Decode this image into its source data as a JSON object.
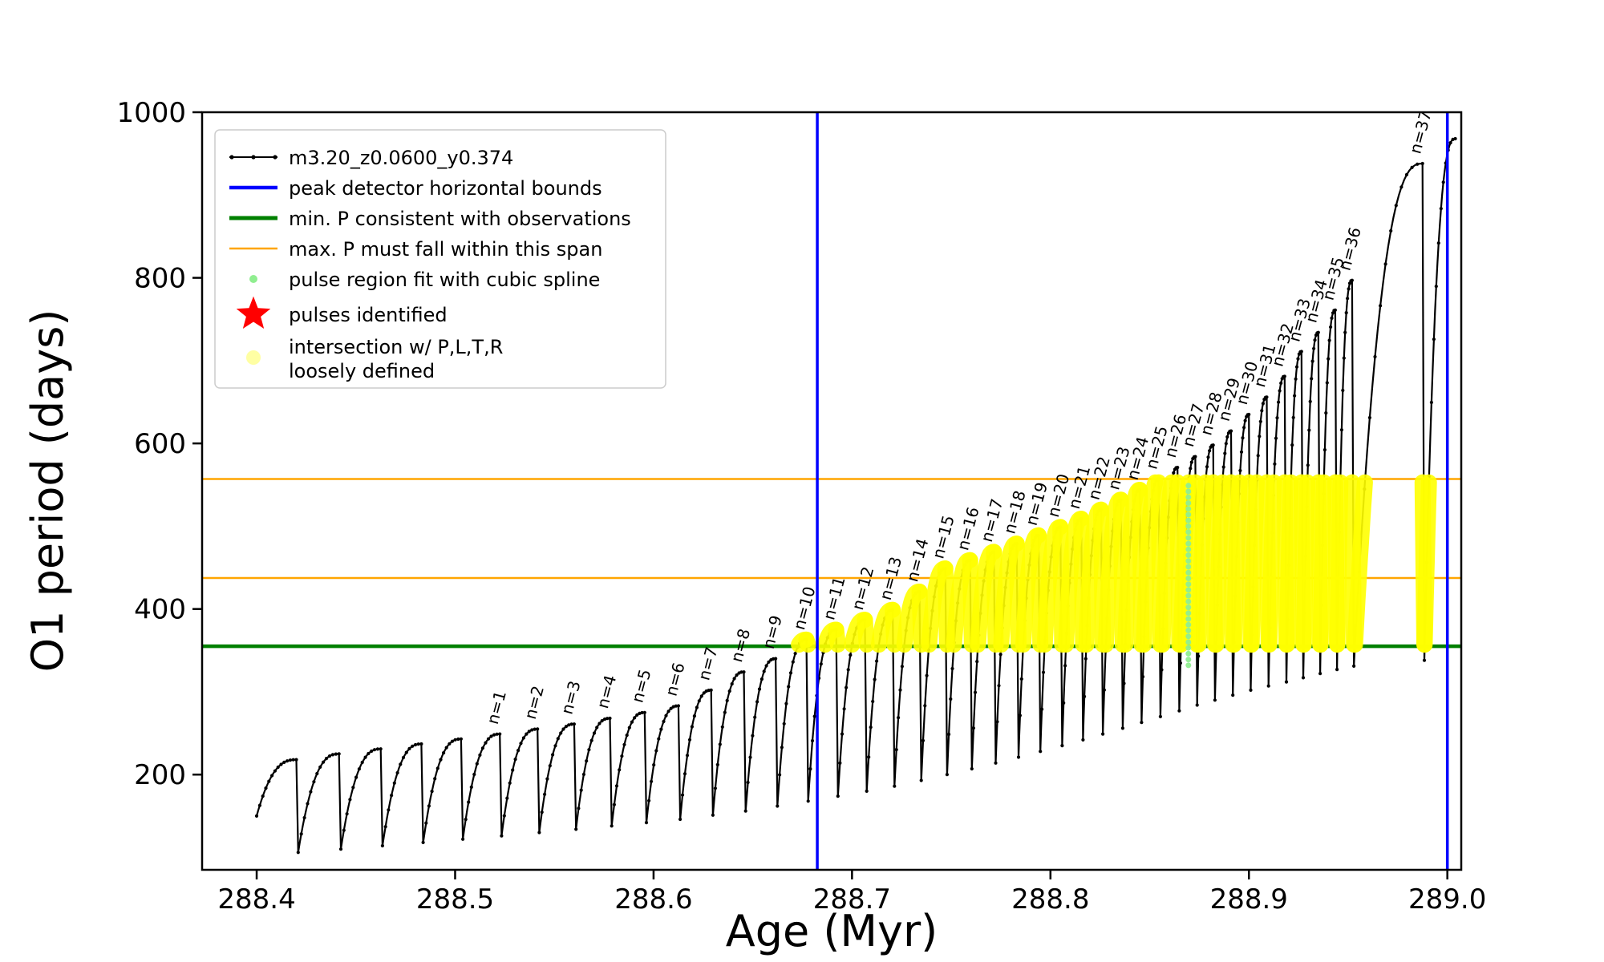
{
  "chart_data": {
    "type": "line",
    "xlabel": "Age (Myr)",
    "ylabel": "O1 period (days)",
    "xlim": [
      288.3725,
      289.007
    ],
    "ylim": [
      85,
      1000
    ],
    "x_start": 288.4,
    "xticks": {
      "values": [
        288.4,
        288.5,
        288.6,
        288.7,
        288.8,
        288.9,
        289.0
      ],
      "labels": [
        "288.4",
        "288.5",
        "288.6",
        "288.7",
        "288.8",
        "288.9",
        "289.0"
      ]
    },
    "yticks": {
      "values": [
        200,
        400,
        600,
        800,
        1000
      ],
      "labels": [
        "200",
        "400",
        "600",
        "800",
        "1000"
      ]
    },
    "series_name": "m3.20_z0.0600_y0.374",
    "colors": {
      "curve": "#000000",
      "peak_bounds": "#0000ff",
      "min_p": "#008000",
      "max_p": "#ffa500",
      "spline": "#90ee90",
      "pulses_identified": "#ff0000",
      "intersection": "#ffff00"
    },
    "vlines": {
      "x": [
        288.6825,
        289.0
      ]
    },
    "hlines": {
      "min_p_y": 355,
      "max_p_y": [
        437.5,
        557
      ]
    },
    "intersection_band": {
      "ymin": 357,
      "ymax": 553
    },
    "spline_strip": {
      "x": 288.8695,
      "ymin": 332,
      "ymax": 553
    },
    "pulses": [
      {
        "label": "",
        "x": 288.42,
        "peak": 218,
        "trough": 150
      },
      {
        "label": "",
        "x": 288.4415,
        "peak": 225,
        "trough": 106
      },
      {
        "label": "",
        "x": 288.4625,
        "peak": 231,
        "trough": 110
      },
      {
        "label": "",
        "x": 288.483,
        "peak": 237,
        "trough": 114
      },
      {
        "label": "",
        "x": 288.503,
        "peak": 243,
        "trough": 118
      },
      {
        "label": "n=1",
        "x": 288.5225,
        "peak": 249,
        "trough": 122
      },
      {
        "label": "n=2",
        "x": 288.5415,
        "peak": 255,
        "trough": 126
      },
      {
        "label": "n=3",
        "x": 288.56,
        "peak": 261,
        "trough": 130
      },
      {
        "label": "n=4",
        "x": 288.578,
        "peak": 268,
        "trough": 134
      },
      {
        "label": "n=5",
        "x": 288.5955,
        "peak": 275,
        "trough": 138
      },
      {
        "label": "n=6",
        "x": 288.6125,
        "peak": 283,
        "trough": 142
      },
      {
        "label": "n=7",
        "x": 288.629,
        "peak": 302,
        "trough": 146
      },
      {
        "label": "n=8",
        "x": 288.6455,
        "peak": 324,
        "trough": 151
      },
      {
        "label": "n=9",
        "x": 288.6615,
        "peak": 340,
        "trough": 156
      },
      {
        "label": "n=10",
        "x": 288.677,
        "peak": 363,
        "trough": 162
      },
      {
        "label": "n=11",
        "x": 288.692,
        "peak": 375,
        "trough": 168
      },
      {
        "label": "n=12",
        "x": 288.7065,
        "peak": 387,
        "trough": 174
      },
      {
        "label": "n=13",
        "x": 288.7205,
        "peak": 399,
        "trough": 180
      },
      {
        "label": "n=14",
        "x": 288.734,
        "peak": 421,
        "trough": 186
      },
      {
        "label": "n=15",
        "x": 288.747,
        "peak": 449,
        "trough": 193
      },
      {
        "label": "n=16",
        "x": 288.7595,
        "peak": 459,
        "trough": 200
      },
      {
        "label": "n=17",
        "x": 288.7715,
        "peak": 469,
        "trough": 207
      },
      {
        "label": "n=18",
        "x": 288.783,
        "peak": 479,
        "trough": 214
      },
      {
        "label": "n=19",
        "x": 288.794,
        "peak": 489,
        "trough": 221
      },
      {
        "label": "n=20",
        "x": 288.805,
        "peak": 499,
        "trough": 228
      },
      {
        "label": "n=21",
        "x": 288.8155,
        "peak": 509,
        "trough": 235
      },
      {
        "label": "n=22",
        "x": 288.8255,
        "peak": 520,
        "trough": 242
      },
      {
        "label": "n=23",
        "x": 288.8355,
        "peak": 532,
        "trough": 249
      },
      {
        "label": "n=24",
        "x": 288.845,
        "peak": 544,
        "trough": 256
      },
      {
        "label": "n=25",
        "x": 288.8545,
        "peak": 557,
        "trough": 263
      },
      {
        "label": "n=26",
        "x": 288.864,
        "peak": 571,
        "trough": 270
      },
      {
        "label": "n=27",
        "x": 288.873,
        "peak": 584,
        "trough": 277
      },
      {
        "label": "n=28",
        "x": 288.882,
        "peak": 598,
        "trough": 284
      },
      {
        "label": "n=29",
        "x": 288.891,
        "peak": 615,
        "trough": 290
      },
      {
        "label": "n=30",
        "x": 288.9,
        "peak": 635,
        "trough": 296
      },
      {
        "label": "n=31",
        "x": 288.909,
        "peak": 656,
        "trough": 302
      },
      {
        "label": "n=32",
        "x": 288.918,
        "peak": 681,
        "trough": 307
      },
      {
        "label": "n=33",
        "x": 288.9265,
        "peak": 711,
        "trough": 312
      },
      {
        "label": "n=34",
        "x": 288.935,
        "peak": 734,
        "trough": 317
      },
      {
        "label": "n=35",
        "x": 288.9435,
        "peak": 761,
        "trough": 322
      },
      {
        "label": "n=36",
        "x": 288.952,
        "peak": 797,
        "trough": 327
      },
      {
        "label": "n=37",
        "x": 288.9875,
        "peak": 938,
        "trough": 331
      },
      {
        "label": "",
        "x": 289.004,
        "peak": 968,
        "trough": 338
      }
    ],
    "legend": [
      {
        "label": "m3.20_z0.0600_y0.374",
        "color": "#000000",
        "type": "line-dot"
      },
      {
        "label": "peak detector horizontal bounds",
        "color": "#0000ff",
        "type": "line"
      },
      {
        "label": "min. P consistent with observations",
        "color": "#008000",
        "type": "line"
      },
      {
        "label": "max. P must fall within this span",
        "color": "#ffa500",
        "type": "line"
      },
      {
        "label": "pulse region fit with cubic spline",
        "color": "#90ee90",
        "type": "dot"
      },
      {
        "label": "pulses identified",
        "color": "#ff0000",
        "type": "star"
      },
      {
        "label": "intersection w/ P,L,T,R",
        "label2": "loosely defined",
        "color": "#ffff99",
        "type": "dot-large"
      }
    ]
  }
}
